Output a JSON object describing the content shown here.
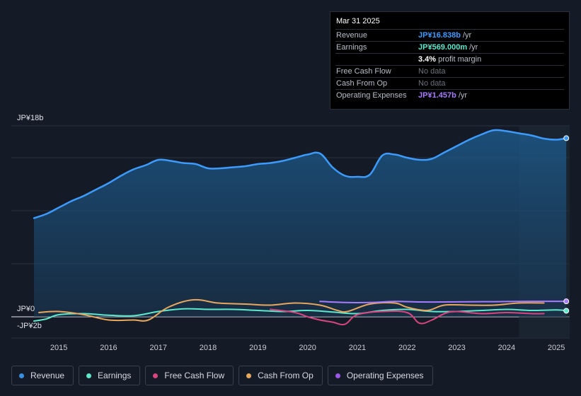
{
  "tooltip": {
    "date": "Mar 31 2025",
    "rows": [
      {
        "label": "Revenue",
        "value": "JP¥16.838b",
        "unit": "/yr",
        "color": "#3d9bff"
      },
      {
        "label": "Earnings",
        "value": "JP¥569.000m",
        "unit": "/yr",
        "color": "#5ee8cc"
      },
      {
        "label": "",
        "value": "3.4%",
        "unit": "profit margin",
        "color": "#ffffff"
      },
      {
        "label": "Free Cash Flow",
        "value": "No data",
        "unit": "",
        "color": ""
      },
      {
        "label": "Cash From Op",
        "value": "No data",
        "unit": "",
        "color": ""
      },
      {
        "label": "Operating Expenses",
        "value": "JP¥1.457b",
        "unit": "/yr",
        "color": "#a87cff"
      }
    ]
  },
  "legend": [
    {
      "label": "Revenue",
      "color": "#3b8fe0"
    },
    {
      "label": "Earnings",
      "color": "#5ee8cc"
    },
    {
      "label": "Free Cash Flow",
      "color": "#d9457f"
    },
    {
      "label": "Cash From Op",
      "color": "#e8a75e"
    },
    {
      "label": "Operating Expenses",
      "color": "#9b57e8"
    }
  ],
  "chart_data": {
    "type": "line",
    "title": "",
    "y_unit": "JP¥ billions",
    "y_tick_labels": [
      {
        "label": "JP¥18b",
        "value": 18
      },
      {
        "label": "JP¥0",
        "value": 0
      },
      {
        "label": "-JP¥2b",
        "value": -2
      }
    ],
    "ylim": [
      -2,
      18
    ],
    "xlim": [
      2014.35,
      2025.25
    ],
    "x_tick_labels": [
      "2015",
      "2016",
      "2017",
      "2018",
      "2019",
      "2020",
      "2021",
      "2022",
      "2023",
      "2024",
      "2025"
    ],
    "x_tick_values": [
      2015,
      2016,
      2017,
      2018,
      2019,
      2020,
      2021,
      2022,
      2023,
      2024,
      2025
    ],
    "forecast_start": 2024.25,
    "series": [
      {
        "name": "Revenue",
        "color": "#3d9bff",
        "area": true,
        "points": [
          [
            2014.5,
            9.3
          ],
          [
            2014.75,
            9.7
          ],
          [
            2015.0,
            10.3
          ],
          [
            2015.25,
            10.9
          ],
          [
            2015.5,
            11.4
          ],
          [
            2015.75,
            12.0
          ],
          [
            2016.0,
            12.6
          ],
          [
            2016.25,
            13.3
          ],
          [
            2016.5,
            13.9
          ],
          [
            2016.75,
            14.3
          ],
          [
            2017.0,
            14.8
          ],
          [
            2017.25,
            14.7
          ],
          [
            2017.5,
            14.5
          ],
          [
            2017.75,
            14.4
          ],
          [
            2018.0,
            14.0
          ],
          [
            2018.25,
            14.0
          ],
          [
            2018.5,
            14.1
          ],
          [
            2018.75,
            14.2
          ],
          [
            2019.0,
            14.4
          ],
          [
            2019.25,
            14.5
          ],
          [
            2019.5,
            14.7
          ],
          [
            2019.75,
            15.0
          ],
          [
            2020.0,
            15.3
          ],
          [
            2020.25,
            15.4
          ],
          [
            2020.5,
            14.1
          ],
          [
            2020.75,
            13.3
          ],
          [
            2021.0,
            13.2
          ],
          [
            2021.25,
            13.4
          ],
          [
            2021.5,
            15.2
          ],
          [
            2021.75,
            15.3
          ],
          [
            2022.0,
            15.0
          ],
          [
            2022.25,
            14.8
          ],
          [
            2022.5,
            14.9
          ],
          [
            2022.75,
            15.5
          ],
          [
            2023.0,
            16.1
          ],
          [
            2023.25,
            16.7
          ],
          [
            2023.5,
            17.2
          ],
          [
            2023.75,
            17.6
          ],
          [
            2024.0,
            17.5
          ],
          [
            2024.25,
            17.3
          ],
          [
            2024.5,
            17.1
          ],
          [
            2024.75,
            16.8
          ],
          [
            2025.0,
            16.7
          ],
          [
            2025.2,
            16.84
          ]
        ]
      },
      {
        "name": "Earnings",
        "color": "#5ee8cc",
        "points": [
          [
            2014.5,
            -0.4
          ],
          [
            2014.75,
            -0.2
          ],
          [
            2015.0,
            0.2
          ],
          [
            2015.5,
            0.3
          ],
          [
            2016.0,
            0.15
          ],
          [
            2016.5,
            0.1
          ],
          [
            2017.0,
            0.5
          ],
          [
            2017.5,
            0.75
          ],
          [
            2018.0,
            0.7
          ],
          [
            2018.5,
            0.7
          ],
          [
            2019.0,
            0.6
          ],
          [
            2019.5,
            0.5
          ],
          [
            2020.0,
            0.6
          ],
          [
            2020.5,
            0.45
          ],
          [
            2021.0,
            0.3
          ],
          [
            2021.5,
            0.6
          ],
          [
            2022.0,
            0.7
          ],
          [
            2022.5,
            0.5
          ],
          [
            2023.0,
            0.5
          ],
          [
            2023.5,
            0.6
          ],
          [
            2024.0,
            0.7
          ],
          [
            2024.5,
            0.6
          ],
          [
            2025.0,
            0.65
          ],
          [
            2025.2,
            0.569
          ]
        ]
      },
      {
        "name": "Free Cash Flow",
        "color": "#d9457f",
        "points": [
          [
            2019.25,
            0.7
          ],
          [
            2019.75,
            0.4
          ],
          [
            2020.0,
            0.0
          ],
          [
            2020.25,
            -0.3
          ],
          [
            2020.5,
            -0.5
          ],
          [
            2020.75,
            -0.7
          ],
          [
            2021.0,
            0.2
          ],
          [
            2021.5,
            0.5
          ],
          [
            2022.0,
            0.4
          ],
          [
            2022.25,
            -0.6
          ],
          [
            2022.5,
            -0.3
          ],
          [
            2022.75,
            0.3
          ],
          [
            2023.0,
            0.5
          ],
          [
            2023.5,
            0.3
          ],
          [
            2024.0,
            0.4
          ],
          [
            2024.5,
            0.3
          ],
          [
            2024.75,
            0.3
          ]
        ]
      },
      {
        "name": "Cash From Op",
        "color": "#e8a75e",
        "points": [
          [
            2014.6,
            0.4
          ],
          [
            2015.0,
            0.5
          ],
          [
            2015.5,
            0.2
          ],
          [
            2016.0,
            -0.3
          ],
          [
            2016.5,
            -0.3
          ],
          [
            2016.8,
            -0.3
          ],
          [
            2017.2,
            0.9
          ],
          [
            2017.7,
            1.6
          ],
          [
            2018.2,
            1.3
          ],
          [
            2018.75,
            1.2
          ],
          [
            2019.25,
            1.1
          ],
          [
            2019.75,
            1.3
          ],
          [
            2020.25,
            1.1
          ],
          [
            2020.6,
            0.6
          ],
          [
            2020.8,
            0.5
          ],
          [
            2021.25,
            1.2
          ],
          [
            2021.75,
            1.3
          ],
          [
            2022.0,
            0.9
          ],
          [
            2022.4,
            0.6
          ],
          [
            2022.75,
            1.1
          ],
          [
            2023.25,
            1.1
          ],
          [
            2023.75,
            1.1
          ],
          [
            2024.25,
            1.3
          ],
          [
            2024.75,
            1.3
          ]
        ]
      },
      {
        "name": "Operating Expenses",
        "color": "#a87cff",
        "points": [
          [
            2020.25,
            1.45
          ],
          [
            2020.75,
            1.35
          ],
          [
            2021.25,
            1.35
          ],
          [
            2021.75,
            1.45
          ],
          [
            2022.25,
            1.4
          ],
          [
            2022.75,
            1.4
          ],
          [
            2023.25,
            1.42
          ],
          [
            2023.75,
            1.43
          ],
          [
            2024.25,
            1.45
          ],
          [
            2024.75,
            1.46
          ],
          [
            2025.2,
            1.457
          ]
        ]
      }
    ]
  }
}
